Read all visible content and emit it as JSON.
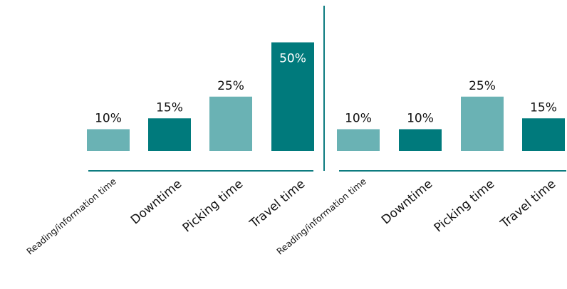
{
  "colors": {
    "light": "#6ab2b4",
    "dark": "#007a7c",
    "axis": "#0e7c80",
    "label": "#111111",
    "inner_label": "#ffffff"
  },
  "chart_data": [
    {
      "type": "bar",
      "categories": [
        "Reading/information time",
        "Downtime",
        "Picking time",
        "Travel time"
      ],
      "values": [
        10,
        15,
        25,
        50
      ],
      "value_labels": [
        "10%",
        "15%",
        "25%",
        "50%"
      ],
      "bar_colors": [
        "#6ab2b4",
        "#007a7c",
        "#6ab2b4",
        "#007a7c"
      ],
      "ylim": [
        0,
        50
      ],
      "grid": false,
      "legend": "none"
    },
    {
      "type": "bar",
      "categories": [
        "Reading/information time",
        "Downtime",
        "Picking time",
        "Travel time"
      ],
      "values": [
        10,
        10,
        25,
        15
      ],
      "value_labels": [
        "10%",
        "10%",
        "25%",
        "15%"
      ],
      "bar_colors": [
        "#6ab2b4",
        "#007a7c",
        "#6ab2b4",
        "#007a7c"
      ],
      "ylim": [
        0,
        50
      ],
      "grid": false,
      "legend": "none"
    }
  ]
}
